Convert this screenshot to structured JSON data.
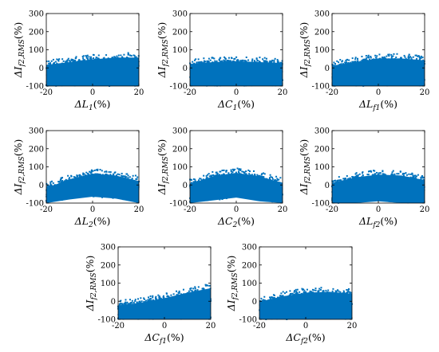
{
  "chart_data": [
    {
      "type": "scatter",
      "xlabel": "ΔL1(%)",
      "ylabel": "ΔIf2,RMS(%)",
      "xlim": [
        -20,
        20
      ],
      "ylim": [
        -100,
        300
      ],
      "x_ticks": [
        "-20",
        "0",
        "20"
      ],
      "y_ticks": [
        "-100",
        "0",
        "100",
        "200",
        "300"
      ],
      "color": "#0072BD",
      "grid": false,
      "band": {
        "x": [
          -20,
          -10,
          0,
          10,
          20
        ],
        "upper": [
          25,
          40,
          55,
          65,
          65
        ],
        "lower": [
          -100,
          -100,
          -100,
          -100,
          -100
        ]
      }
    },
    {
      "type": "scatter",
      "xlabel": "ΔC1(%)",
      "ylabel": "ΔIf2,RMS(%)",
      "xlim": [
        -20,
        20
      ],
      "ylim": [
        -100,
        300
      ],
      "x_ticks": [
        "-20",
        "0",
        "20"
      ],
      "y_ticks": [
        "-100",
        "0",
        "100",
        "200",
        "300"
      ],
      "color": "#0072BD",
      "grid": false,
      "band": {
        "x": [
          -20,
          -10,
          0,
          10,
          20
        ],
        "upper": [
          30,
          40,
          45,
          40,
          35
        ],
        "lower": [
          -100,
          -100,
          -100,
          -100,
          -100
        ]
      }
    },
    {
      "type": "scatter",
      "xlabel": "ΔLf1(%)",
      "ylabel": "ΔIf2,RMS(%)",
      "xlim": [
        -20,
        20
      ],
      "ylim": [
        -100,
        300
      ],
      "x_ticks": [
        "-20",
        "0",
        "20"
      ],
      "y_ticks": [
        "-100",
        "0",
        "100",
        "200",
        "300"
      ],
      "color": "#0072BD",
      "grid": false,
      "band": {
        "x": [
          -20,
          -10,
          0,
          10,
          20
        ],
        "upper": [
          20,
          40,
          60,
          60,
          50
        ],
        "lower": [
          -100,
          -100,
          -100,
          -100,
          -100
        ]
      }
    },
    {
      "type": "scatter",
      "xlabel": "ΔL2(%)",
      "ylabel": "ΔIf2,RMS(%)",
      "xlim": [
        -20,
        20
      ],
      "ylim": [
        -100,
        300
      ],
      "x_ticks": [
        "-20",
        "0",
        "20"
      ],
      "y_ticks": [
        "-100",
        "0",
        "100",
        "200",
        "300"
      ],
      "color": "#0072BD",
      "grid": false,
      "band": {
        "x": [
          -20,
          -10,
          0,
          10,
          20
        ],
        "upper": [
          -10,
          40,
          70,
          60,
          30
        ],
        "lower": [
          -100,
          -80,
          -65,
          -75,
          -100
        ]
      }
    },
    {
      "type": "scatter",
      "xlabel": "ΔC2(%)",
      "ylabel": "ΔIf2,RMS(%)",
      "xlim": [
        -20,
        20
      ],
      "ylim": [
        -100,
        300
      ],
      "x_ticks": [
        "-20",
        "0",
        "20"
      ],
      "y_ticks": [
        "-100",
        "0",
        "100",
        "200",
        "300"
      ],
      "color": "#0072BD",
      "grid": false,
      "band": {
        "x": [
          -20,
          -10,
          0,
          10,
          20
        ],
        "upper": [
          15,
          55,
          75,
          55,
          20
        ],
        "lower": [
          -100,
          -85,
          -70,
          -90,
          -100
        ]
      }
    },
    {
      "type": "scatter",
      "xlabel": "ΔLf2(%)",
      "ylabel": "ΔIf2,RMS(%)",
      "xlim": [
        -20,
        20
      ],
      "ylim": [
        -100,
        300
      ],
      "x_ticks": [
        "-20",
        "0",
        "20"
      ],
      "y_ticks": [
        "-100",
        "0",
        "100",
        "200",
        "300"
      ],
      "color": "#0072BD",
      "grid": false,
      "band": {
        "x": [
          -20,
          -10,
          0,
          10,
          20
        ],
        "upper": [
          20,
          50,
          65,
          60,
          35
        ],
        "lower": [
          -100,
          -100,
          -90,
          -100,
          -100
        ]
      }
    },
    {
      "type": "scatter",
      "xlabel": "ΔCf1(%)",
      "ylabel": "ΔIf2,RMS(%)",
      "xlim": [
        -20,
        20
      ],
      "ylim": [
        -100,
        300
      ],
      "x_ticks": [
        "-20",
        "0",
        "20"
      ],
      "y_ticks": [
        "-100",
        "0",
        "100",
        "200",
        "300"
      ],
      "color": "#0072BD",
      "grid": false,
      "band": {
        "x": [
          -20,
          -10,
          0,
          10,
          20
        ],
        "upper": [
          -15,
          0,
          25,
          55,
          80
        ],
        "lower": [
          -100,
          -100,
          -100,
          -100,
          -100
        ]
      }
    },
    {
      "type": "scatter",
      "xlabel": "ΔCf2(%)",
      "ylabel": "ΔIf2,RMS(%)",
      "xlim": [
        -20,
        20
      ],
      "ylim": [
        -100,
        300
      ],
      "x_ticks": [
        "-20",
        "0",
        "20"
      ],
      "y_ticks": [
        "-100",
        "0",
        "100",
        "200",
        "300"
      ],
      "color": "#0072BD",
      "grid": false,
      "band": {
        "x": [
          -20,
          -10,
          0,
          10,
          20
        ],
        "upper": [
          5,
          35,
          55,
          60,
          50
        ],
        "lower": [
          -100,
          -100,
          -100,
          -100,
          -100
        ]
      }
    }
  ]
}
